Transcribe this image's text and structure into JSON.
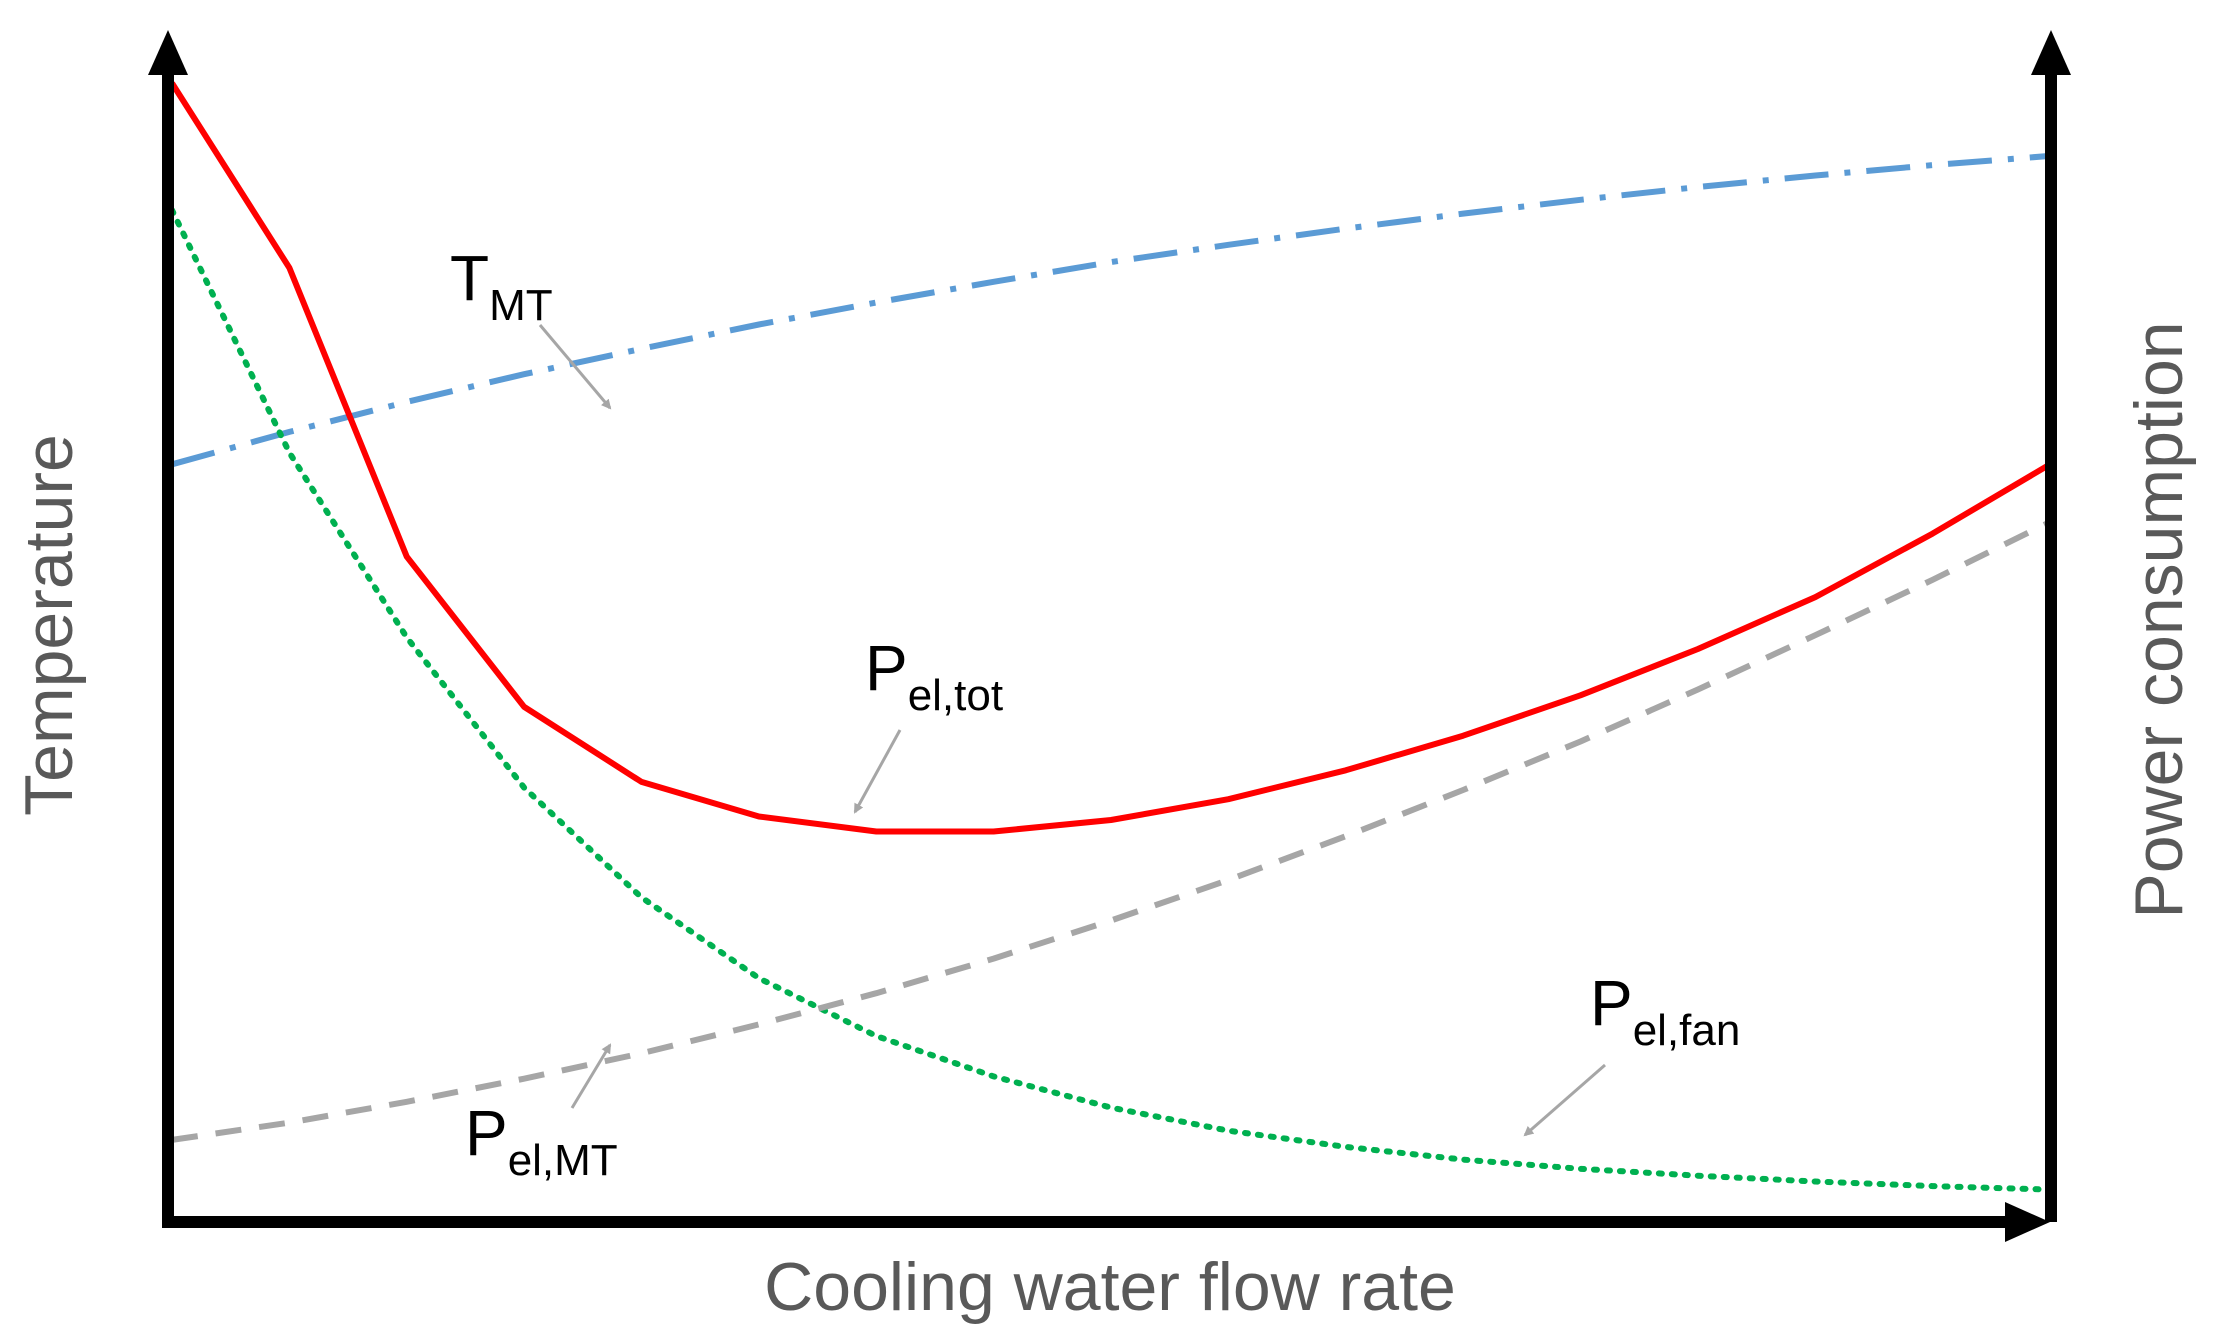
{
  "chart_data": {
    "type": "line",
    "title": "",
    "xlabel": "Cooling water flow rate",
    "ylabel_left": "Temperature",
    "ylabel_right": "Power consumption",
    "xlim": [
      0,
      100
    ],
    "ylim": [
      0,
      100
    ],
    "grid": false,
    "ticks": false,
    "x": [
      0,
      6.25,
      12.5,
      18.75,
      25,
      31.25,
      37.5,
      43.75,
      50,
      56.25,
      62.5,
      68.75,
      75,
      81.25,
      87.5,
      93.75,
      100
    ],
    "series": [
      {
        "name": "T_MT",
        "label_main": "T",
        "label_sub": "MT",
        "axis": "left",
        "style": "dash-dot",
        "color": "#5b9bd5",
        "values": [
          65.0,
          67.8,
          70.4,
          72.8,
          75.0,
          77.1,
          79.0,
          80.8,
          82.5,
          84.0,
          85.4,
          86.7,
          87.9,
          89.0,
          90.0,
          90.9,
          91.7
        ]
      },
      {
        "name": "P_el,tot",
        "label_main": "P",
        "label_sub": "el,tot",
        "axis": "right",
        "style": "solid",
        "color": "#ff0000",
        "values": [
          98.0,
          82.0,
          57.0,
          44.0,
          37.5,
          34.5,
          33.2,
          33.2,
          34.2,
          36.0,
          38.5,
          41.5,
          45.0,
          49.0,
          53.5,
          59.0,
          65.0
        ]
      },
      {
        "name": "P_el,fan",
        "label_main": "P",
        "label_sub": "el,fan",
        "axis": "right",
        "style": "dotted",
        "color": "#00b050",
        "values": [
          87.0,
          66.0,
          50.0,
          37.0,
          27.5,
          20.5,
          15.5,
          12.0,
          9.3,
          7.3,
          5.9,
          4.8,
          4.0,
          3.4,
          2.9,
          2.5,
          2.2
        ]
      },
      {
        "name": "P_el,MT",
        "label_main": "P",
        "label_sub": "el,MT",
        "axis": "right",
        "style": "dashed",
        "color": "#a6a6a6",
        "values": [
          6.5,
          8.0,
          9.8,
          11.8,
          14.0,
          16.5,
          19.2,
          22.2,
          25.5,
          29.0,
          32.8,
          36.8,
          41.0,
          45.5,
          50.2,
          55.0,
          60.0
        ]
      }
    ],
    "annotations": [
      {
        "series": "T_MT",
        "at_x": 23,
        "leader_color": "#a6a6a6"
      },
      {
        "series": "P_el,tot",
        "at_x": 37,
        "leader_color": "#a6a6a6"
      },
      {
        "series": "P_el,fan",
        "at_x": 72,
        "leader_color": "#a6a6a6"
      },
      {
        "series": "P_el,MT",
        "at_x": 23,
        "leader_color": "#a6a6a6"
      }
    ]
  }
}
